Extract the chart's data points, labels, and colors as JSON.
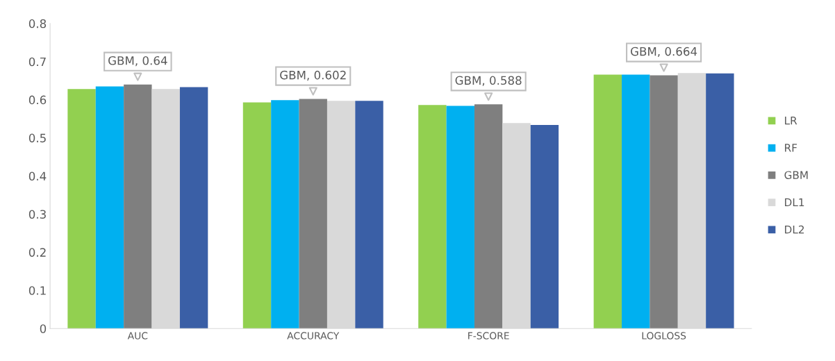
{
  "chart_data": {
    "type": "bar",
    "categories": [
      "AUC",
      "ACCURACY",
      "F-SCORE",
      "LOGLOSS"
    ],
    "series": [
      {
        "name": "LR",
        "color": "#92d050",
        "values": [
          0.628,
          0.593,
          0.586,
          0.666
        ]
      },
      {
        "name": "RF",
        "color": "#00b0f0",
        "values": [
          0.635,
          0.599,
          0.584,
          0.666
        ]
      },
      {
        "name": "GBM",
        "color": "#7f7f7f",
        "values": [
          0.64,
          0.602,
          0.588,
          0.664
        ],
        "value_labels": [
          "GBM, 0.64",
          "GBM, 0.602",
          "GBM, 0.588",
          "GBM, 0.664"
        ]
      },
      {
        "name": "DL1",
        "color": "#d9d9d9",
        "values": [
          0.628,
          0.597,
          0.539,
          0.67
        ]
      },
      {
        "name": "DL2",
        "color": "#3a5fa6",
        "values": [
          0.633,
          0.597,
          0.534,
          0.669
        ]
      }
    ],
    "ylim": [
      0,
      0.8
    ],
    "yticks": [
      0,
      0.1,
      0.2,
      0.3,
      0.4,
      0.5,
      0.6,
      0.7,
      0.8
    ],
    "grid": false,
    "legend": "right"
  }
}
